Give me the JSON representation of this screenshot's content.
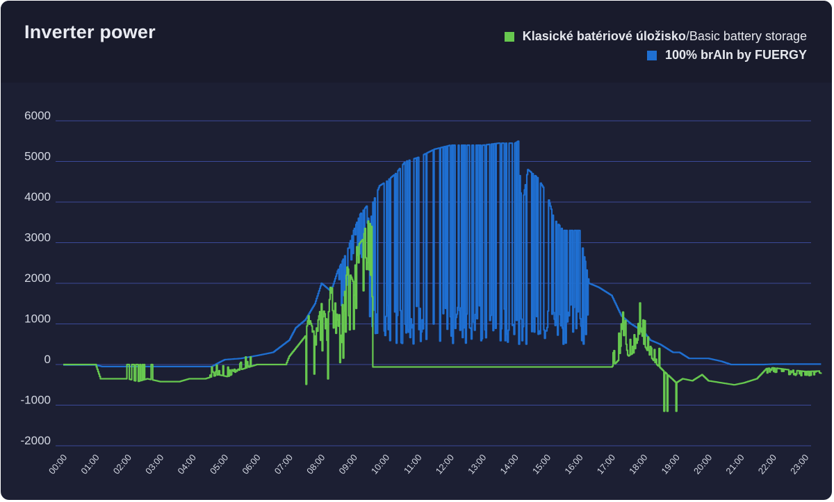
{
  "card": {
    "background": "#1c1f33",
    "header_background": "#191b2c"
  },
  "header": {
    "title": "Inverter power"
  },
  "legend": [
    {
      "label_bold": "Klasické batériové úložisko",
      "separator": " / ",
      "label_rest": "Basic battery storage",
      "color": "#67c84f"
    },
    {
      "label_bold": "100% brAIn by FUERGY",
      "separator": "",
      "label_rest": "",
      "color": "#1f6fd1"
    }
  ],
  "chart_data": {
    "type": "line",
    "title": "Inverter power",
    "xlabel": "",
    "ylabel": "",
    "x_ticks": [
      "00:00",
      "01:00",
      "02:00",
      "03:00",
      "04:00",
      "05:00",
      "06:00",
      "07:00",
      "08:00",
      "09:00",
      "10:00",
      "11:00",
      "12:00",
      "13:00",
      "14:00",
      "15:00",
      "16:00",
      "17:00",
      "18:00",
      "19:00",
      "20:00",
      "21:00",
      "22:00",
      "23:00"
    ],
    "y_ticks": [
      6000,
      5000,
      4000,
      3000,
      2000,
      1000,
      0,
      -1000,
      -2000
    ],
    "ylim": [
      -2000,
      6000
    ],
    "xlim_hours": [
      -0.2,
      23.5
    ],
    "grid": true,
    "legend_position": "top-right",
    "series": [
      {
        "name": "100% brAIn by FUERGY",
        "color": "#1f6fd1",
        "points": [
          [
            0.0,
            -10
          ],
          [
            1.0,
            -10
          ],
          [
            1.2,
            -50
          ],
          [
            4.6,
            -50
          ],
          [
            4.8,
            40
          ],
          [
            5.0,
            120
          ],
          [
            5.5,
            150
          ],
          [
            6.0,
            220
          ],
          [
            6.5,
            300
          ],
          [
            7.0,
            600
          ],
          [
            7.2,
            900
          ],
          [
            7.5,
            1100
          ],
          [
            7.8,
            1500
          ],
          [
            8.0,
            2000
          ],
          [
            8.3,
            1800
          ],
          [
            8.5,
            2300
          ],
          [
            8.8,
            2800
          ],
          [
            9.0,
            3300
          ],
          [
            9.2,
            3700
          ],
          [
            9.4,
            3900
          ],
          [
            9.5,
            3300
          ],
          [
            9.6,
            4000
          ],
          [
            9.8,
            4400
          ],
          [
            10.0,
            4500
          ],
          [
            10.3,
            4700
          ],
          [
            10.6,
            5000
          ],
          [
            11.0,
            5100
          ],
          [
            11.5,
            5300
          ],
          [
            12.0,
            5400
          ],
          [
            12.5,
            5400
          ],
          [
            13.0,
            5400
          ],
          [
            13.5,
            5450
          ],
          [
            14.0,
            5450
          ],
          [
            14.1,
            5500
          ],
          [
            14.2,
            3800
          ],
          [
            14.4,
            4800
          ],
          [
            14.7,
            4600
          ],
          [
            15.0,
            4200
          ],
          [
            15.2,
            3600
          ],
          [
            15.5,
            3300
          ],
          [
            16.0,
            3300
          ],
          [
            16.3,
            2000
          ],
          [
            16.6,
            1900
          ],
          [
            17.0,
            1700
          ],
          [
            17.3,
            1200
          ],
          [
            17.6,
            1000
          ],
          [
            18.0,
            800
          ],
          [
            18.2,
            600
          ],
          [
            18.5,
            500
          ],
          [
            18.9,
            300
          ],
          [
            19.1,
            300
          ],
          [
            19.4,
            150
          ],
          [
            20.0,
            150
          ],
          [
            20.4,
            80
          ],
          [
            20.7,
            0
          ],
          [
            21.7,
            0
          ],
          [
            22.0,
            10
          ],
          [
            23.5,
            10
          ]
        ]
      },
      {
        "name": "Klasické batériové úložisko / Basic battery storage",
        "color": "#67c84f",
        "points": [
          [
            0.0,
            0
          ],
          [
            1.0,
            0
          ],
          [
            1.15,
            -350
          ],
          [
            2.0,
            -350
          ],
          [
            2.3,
            -420
          ],
          [
            2.6,
            -350
          ],
          [
            3.0,
            -420
          ],
          [
            3.6,
            -420
          ],
          [
            3.9,
            -350
          ],
          [
            4.4,
            -350
          ],
          [
            4.6,
            -300
          ],
          [
            4.8,
            -250
          ],
          [
            5.1,
            -300
          ],
          [
            5.4,
            -150
          ],
          [
            6.0,
            0
          ],
          [
            6.6,
            0
          ],
          [
            6.9,
            0
          ],
          [
            7.0,
            200
          ],
          [
            7.3,
            500
          ],
          [
            7.5,
            700
          ],
          [
            7.6,
            1200
          ],
          [
            7.8,
            700
          ],
          [
            8.0,
            1500
          ],
          [
            8.2,
            1000
          ],
          [
            8.3,
            2200
          ],
          [
            8.5,
            1100
          ],
          [
            8.7,
            1600
          ],
          [
            8.8,
            2400
          ],
          [
            9.0,
            2000
          ],
          [
            9.1,
            2900
          ],
          [
            9.3,
            3100
          ],
          [
            9.4,
            3600
          ],
          [
            9.55,
            3400
          ],
          [
            9.6,
            -60
          ],
          [
            10.0,
            -60
          ],
          [
            11.0,
            -60
          ],
          [
            12.0,
            -60
          ],
          [
            13.0,
            -60
          ],
          [
            14.0,
            -60
          ],
          [
            15.0,
            -60
          ],
          [
            16.0,
            -60
          ],
          [
            17.0,
            -60
          ],
          [
            17.2,
            100
          ],
          [
            17.4,
            800
          ],
          [
            17.5,
            200
          ],
          [
            17.7,
            300
          ],
          [
            17.9,
            900
          ],
          [
            18.0,
            500
          ],
          [
            18.2,
            200
          ],
          [
            18.4,
            0
          ],
          [
            18.6,
            -150
          ],
          [
            18.8,
            -300
          ],
          [
            19.0,
            -450
          ],
          [
            19.2,
            -350
          ],
          [
            19.5,
            -400
          ],
          [
            19.8,
            -250
          ],
          [
            20.0,
            -400
          ],
          [
            20.4,
            -450
          ],
          [
            20.8,
            -500
          ],
          [
            21.1,
            -450
          ],
          [
            21.5,
            -350
          ],
          [
            21.8,
            -100
          ],
          [
            22.0,
            -80
          ],
          [
            22.5,
            -130
          ],
          [
            23.0,
            -170
          ],
          [
            23.5,
            -160
          ]
        ]
      }
    ]
  }
}
